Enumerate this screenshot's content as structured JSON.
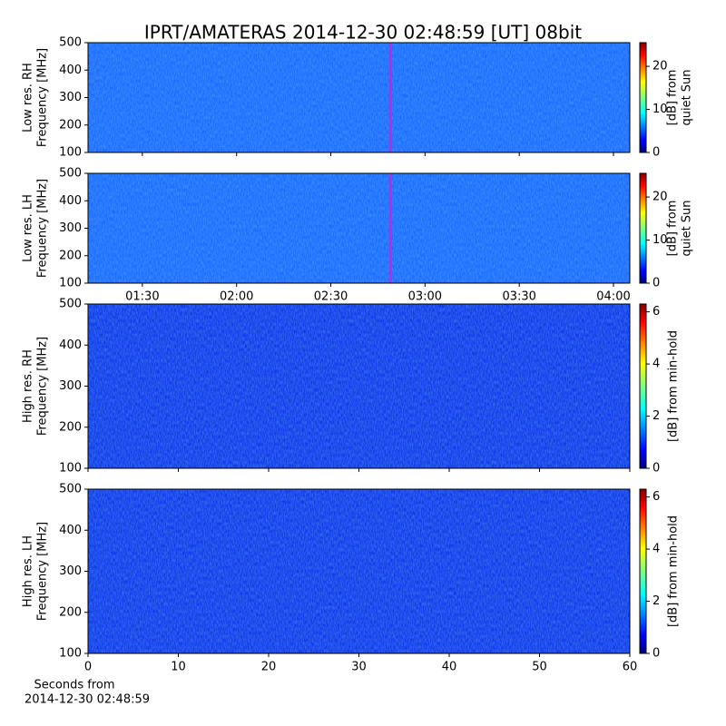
{
  "title": "IPRT/AMATERAS 2014-12-30 02:48:59 [UT]   08bit",
  "chart_data": [
    {
      "type": "heatmap",
      "ylabel": [
        "Low res. RH",
        "Frequency [MHz]"
      ],
      "ylim": [
        100,
        500
      ],
      "yticks": [
        100,
        200,
        300,
        400,
        500
      ],
      "xlim": [
        72.7,
        245.2
      ],
      "xticks": [
        90,
        120,
        150,
        180,
        210,
        240
      ],
      "marker_x": 169,
      "marker_color": "#b030e0",
      "base_color": "#1464ff",
      "colorbar": {
        "label": [
          "[dB] from",
          "quiet Sun"
        ],
        "lim": [
          0,
          25.5
        ],
        "ticks": [
          0,
          10,
          20
        ],
        "colormap": "jet"
      }
    },
    {
      "type": "heatmap",
      "ylabel": [
        "Low res. LH",
        "Frequency [MHz]"
      ],
      "ylim": [
        100,
        500
      ],
      "yticks": [
        100,
        200,
        300,
        400,
        500
      ],
      "xlim": [
        72.7,
        245.2
      ],
      "xticks": [
        {
          "value": 90,
          "label": "01:30"
        },
        {
          "value": 120,
          "label": "02:00"
        },
        {
          "value": 150,
          "label": "02:30"
        },
        {
          "value": 180,
          "label": "03:00"
        },
        {
          "value": 210,
          "label": "03:30"
        },
        {
          "value": 240,
          "label": "04:00"
        }
      ],
      "marker_x": 169,
      "marker_color": "#b030e0",
      "base_color": "#1464ff",
      "colorbar": {
        "label": [
          "[dB] from",
          "quiet Sun"
        ],
        "lim": [
          0,
          25.5
        ],
        "ticks": [
          0,
          10,
          20
        ],
        "colormap": "jet"
      }
    },
    {
      "type": "heatmap",
      "ylabel": [
        "High res. RH",
        "Frequency [MHz]"
      ],
      "ylim": [
        100,
        500
      ],
      "yticks": [
        100,
        200,
        300,
        400,
        500
      ],
      "xlim": [
        0,
        60
      ],
      "xticks": [
        0,
        10,
        20,
        30,
        40,
        50,
        60
      ],
      "base_color": "#0a2fe8",
      "colorbar": {
        "label": [
          "[dB] from min-hold"
        ],
        "lim": [
          0,
          6.3
        ],
        "ticks": [
          0,
          2,
          4,
          6
        ],
        "colormap": "jet"
      }
    },
    {
      "type": "heatmap",
      "ylabel": [
        "High res. LH",
        "Frequency [MHz]"
      ],
      "ylim": [
        100,
        500
      ],
      "yticks": [
        100,
        200,
        300,
        400,
        500
      ],
      "xlim": [
        0,
        60
      ],
      "xticks": [
        0,
        10,
        20,
        30,
        40,
        50,
        60
      ],
      "xlabel": [
        "Seconds from",
        "2014-12-30 02:48:59"
      ],
      "base_color": "#0a2fe8",
      "colorbar": {
        "label": [
          "[dB] from min-hold"
        ],
        "lim": [
          0,
          6.3
        ],
        "ticks": [
          0,
          2,
          4,
          6
        ],
        "colormap": "jet"
      }
    }
  ]
}
